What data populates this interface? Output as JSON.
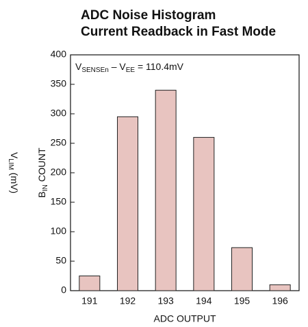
{
  "chart_data": {
    "type": "bar",
    "title": [
      "ADC Noise Histogram",
      "Current Readback in Fast Mode"
    ],
    "annotation": [
      "V",
      "SENSEn",
      " – V",
      "EE",
      " = 110.4mV"
    ],
    "ylabel": [
      "B",
      "IN",
      " COUNT"
    ],
    "ylabel_outer": [
      "V",
      "LIM",
      " (mV)"
    ],
    "xlabel": "ADC OUTPUT",
    "categories": [
      "191",
      "192",
      "193",
      "194",
      "195",
      "196"
    ],
    "values": [
      25,
      295,
      340,
      260,
      73,
      10
    ],
    "color": "#e8c4c0",
    "ylim": [
      0,
      400
    ],
    "yticks": [
      0,
      50,
      100,
      150,
      200,
      250,
      300,
      350,
      400
    ]
  }
}
